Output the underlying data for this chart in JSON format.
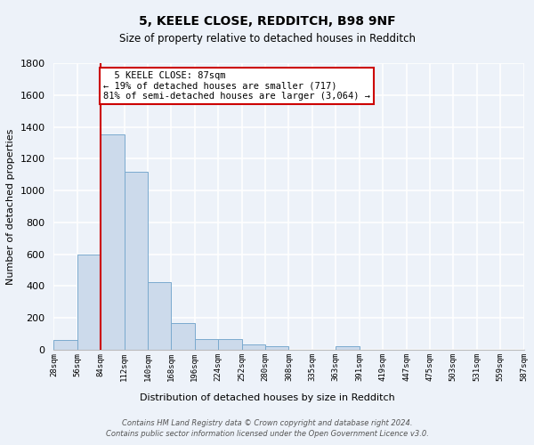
{
  "title1": "5, KEELE CLOSE, REDDITCH, B98 9NF",
  "title2": "Size of property relative to detached houses in Redditch",
  "xlabel": "Distribution of detached houses by size in Redditch",
  "ylabel": "Number of detached properties",
  "footnote1": "Contains HM Land Registry data © Crown copyright and database right 2024.",
  "footnote2": "Contains public sector information licensed under the Open Government Licence v3.0.",
  "bar_values": [
    60,
    600,
    1350,
    1120,
    425,
    170,
    65,
    65,
    35,
    20,
    0,
    0,
    20,
    0,
    0,
    0,
    0,
    0,
    0,
    0
  ],
  "bin_labels": [
    "28sqm",
    "56sqm",
    "84sqm",
    "112sqm",
    "140sqm",
    "168sqm",
    "196sqm",
    "224sqm",
    "252sqm",
    "280sqm",
    "308sqm",
    "335sqm",
    "363sqm",
    "391sqm",
    "419sqm",
    "447sqm",
    "475sqm",
    "503sqm",
    "531sqm",
    "559sqm",
    "587sqm"
  ],
  "bar_color": "#ccdaeb",
  "bar_edge_color": "#7aaace",
  "background_color": "#edf2f9",
  "grid_color": "#ffffff",
  "vline_x": 2,
  "vline_color": "#cc0000",
  "annotation_text": "  5 KEELE CLOSE: 87sqm\n← 19% of detached houses are smaller (717)\n81% of semi-detached houses are larger (3,064) →",
  "annotation_box_color": "#ffffff",
  "annotation_box_edge": "#cc0000",
  "ylim": [
    0,
    1800
  ],
  "yticks": [
    0,
    200,
    400,
    600,
    800,
    1000,
    1200,
    1400,
    1600,
    1800
  ],
  "title1_fontsize": 10,
  "title2_fontsize": 8.5,
  "ylabel_fontsize": 8,
  "xlabel_fontsize": 8
}
